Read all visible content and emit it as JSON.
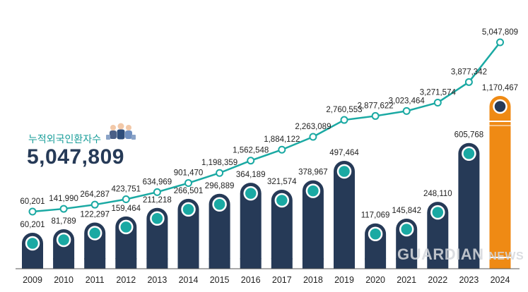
{
  "chart_data": {
    "type": "bar+line",
    "categories": [
      "2009",
      "2010",
      "2011",
      "2012",
      "2013",
      "2014",
      "2015",
      "2016",
      "2017",
      "2018",
      "2019",
      "2020",
      "2021",
      "2022",
      "2023",
      "2024"
    ],
    "bars": {
      "values": [
        60201,
        81789,
        122297,
        159464,
        211218,
        266501,
        296889,
        364189,
        321574,
        378967,
        497464,
        117069,
        145842,
        248110,
        605768,
        1170467
      ],
      "labels": [
        "60,201",
        "81,789",
        "122,297",
        "159,464",
        "211,218",
        "266,501",
        "296,889",
        "364,189",
        "321,574",
        "378,967",
        "497,464",
        "117,069",
        "145,842",
        "248,110",
        "605,768",
        "1,170,467"
      ],
      "color": "#263a57",
      "highlight_color": "#ef8a14"
    },
    "line": {
      "values": [
        60201,
        141990,
        264287,
        423751,
        634969,
        901470,
        1198359,
        1562548,
        1884122,
        2263089,
        2760553,
        2877622,
        3023464,
        3271574,
        3877342,
        5047809
      ],
      "labels": [
        "60,201",
        "141,990",
        "264,287",
        "423,751",
        "634,969",
        "901,470",
        "1,198,359",
        "1,562,548",
        "1,884,122",
        "2,263,089",
        "2,760,553",
        "2,877,622",
        "3,023,464",
        "3,271,574",
        "3,877,342",
        "5,047,809"
      ],
      "color": "#1aa9a3"
    },
    "grid": false,
    "legend": "none"
  },
  "callout": {
    "label": "누적외국인환자수",
    "value": "5,047,809"
  },
  "watermark": {
    "text": "GUARDIAN",
    "suffix": "NEWS"
  }
}
